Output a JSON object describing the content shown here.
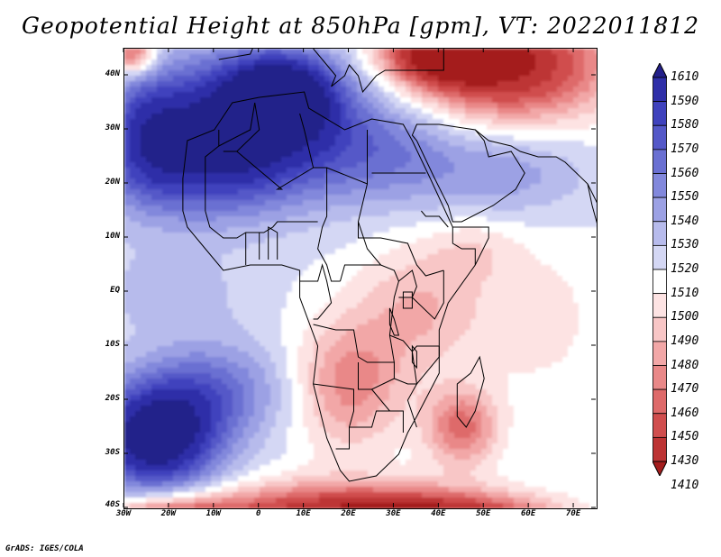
{
  "title": "Geopotential Height at 850hPa [gpm], VT: 2022011812",
  "credit": "GrADS: IGES/COLA",
  "map": {
    "extent": {
      "lon_min": -30,
      "lon_max": 75,
      "lat_min": -40,
      "lat_max": 45
    },
    "lat_ticks": [
      {
        "value": 40,
        "label": "40N"
      },
      {
        "value": 30,
        "label": "30N"
      },
      {
        "value": 20,
        "label": "20N"
      },
      {
        "value": 10,
        "label": "10N"
      },
      {
        "value": 0,
        "label": "EQ"
      },
      {
        "value": -10,
        "label": "10S"
      },
      {
        "value": -20,
        "label": "20S"
      },
      {
        "value": -30,
        "label": "30S"
      },
      {
        "value": -40,
        "label": "40S"
      }
    ],
    "lon_ticks": [
      {
        "value": -30,
        "label": "30W"
      },
      {
        "value": -20,
        "label": "20W"
      },
      {
        "value": -10,
        "label": "10W"
      },
      {
        "value": 0,
        "label": "0"
      },
      {
        "value": 10,
        "label": "10E"
      },
      {
        "value": 20,
        "label": "20E"
      },
      {
        "value": 30,
        "label": "30E"
      },
      {
        "value": 40,
        "label": "40E"
      },
      {
        "value": 50,
        "label": "50E"
      },
      {
        "value": 60,
        "label": "60E"
      },
      {
        "value": 70,
        "label": "70E"
      }
    ]
  },
  "colorbar": {
    "labels": [
      "1610",
      "1590",
      "1580",
      "1570",
      "1560",
      "1550",
      "1540",
      "1530",
      "1520",
      "1510",
      "1500",
      "1490",
      "1480",
      "1470",
      "1460",
      "1450",
      "1430",
      "1410"
    ],
    "colors": [
      "#24208a",
      "#2f2fa8",
      "#3f42bd",
      "#5458c8",
      "#6a70d2",
      "#8288dc",
      "#9ca1e4",
      "#b7bbec",
      "#d4d7f4",
      "#ffffff",
      "#fde3e3",
      "#f8c6c6",
      "#f2a7a7",
      "#e98888",
      "#de6a6a",
      "#d04e4e",
      "#bd3434",
      "#a41d1d"
    ]
  },
  "field": {
    "background_value": 1515,
    "features": [
      {
        "name": "atlantic-high-south",
        "lon": -23,
        "lat": -27,
        "rx": 14,
        "ry": 10,
        "value": 1620
      },
      {
        "name": "atlantic-high-south-ext",
        "lon": -10,
        "lat": -18,
        "rx": 16,
        "ry": 9,
        "value": 1555
      },
      {
        "name": "sahara-high",
        "lon": -2,
        "lat": 32,
        "rx": 22,
        "ry": 12,
        "value": 1600
      },
      {
        "name": "sahara-high-core",
        "lon": 5,
        "lat": 37,
        "rx": 12,
        "ry": 7,
        "value": 1590
      },
      {
        "name": "west-africa-high",
        "lon": -12,
        "lat": 22,
        "rx": 22,
        "ry": 10,
        "value": 1560
      },
      {
        "name": "arabia-high",
        "lon": 28,
        "lat": 26,
        "rx": 18,
        "ry": 10,
        "value": 1550
      },
      {
        "name": "arabia-east",
        "lon": 55,
        "lat": 22,
        "rx": 18,
        "ry": 8,
        "value": 1540
      },
      {
        "name": "north-atlantic-blue",
        "lon": -25,
        "lat": 30,
        "rx": 10,
        "ry": 12,
        "value": 1560
      },
      {
        "name": "tropical-atlantic",
        "lon": -20,
        "lat": 0,
        "rx": 18,
        "ry": 8,
        "value": 1530
      },
      {
        "name": "southern-ocean-low",
        "lon": 20,
        "lat": -42,
        "rx": 32,
        "ry": 6,
        "value": 1410
      },
      {
        "name": "southern-ocean-low-east",
        "lon": 45,
        "lat": -42,
        "rx": 20,
        "ry": 4,
        "value": 1460
      },
      {
        "name": "east-med-low",
        "lon": 55,
        "lat": 42,
        "rx": 22,
        "ry": 10,
        "value": 1420
      },
      {
        "name": "east-med-low-core",
        "lon": 42,
        "lat": 44,
        "rx": 12,
        "ry": 5,
        "value": 1410
      },
      {
        "name": "southern-africa-low",
        "lon": 20,
        "lat": -17,
        "rx": 12,
        "ry": 12,
        "value": 1470
      },
      {
        "name": "mozambique-low",
        "lon": 45,
        "lat": -25,
        "rx": 8,
        "ry": 7,
        "value": 1460
      },
      {
        "name": "east-africa-low",
        "lon": 36,
        "lat": -3,
        "rx": 14,
        "ry": 12,
        "value": 1485
      },
      {
        "name": "horn-low",
        "lon": 48,
        "lat": 8,
        "rx": 10,
        "ry": 6,
        "value": 1500
      },
      {
        "name": "indian-ocean-mild",
        "lon": 62,
        "lat": -5,
        "rx": 14,
        "ry": 14,
        "value": 1500
      },
      {
        "name": "iberia-low",
        "lon": -28,
        "lat": 44,
        "rx": 5,
        "ry": 4,
        "value": 1450
      },
      {
        "name": "south-atlantic-low",
        "lon": -20,
        "lat": -42,
        "rx": 14,
        "ry": 4,
        "value": 1450
      }
    ]
  },
  "geography": {
    "africa_outline": [
      [
        -17,
        21
      ],
      [
        -16,
        28
      ],
      [
        -10,
        30
      ],
      [
        -6,
        35
      ],
      [
        0,
        36
      ],
      [
        10,
        37
      ],
      [
        11,
        34
      ],
      [
        19,
        30
      ],
      [
        25,
        32
      ],
      [
        32,
        31
      ],
      [
        34,
        28
      ],
      [
        38,
        21
      ],
      [
        43,
        12
      ],
      [
        51,
        12
      ],
      [
        51,
        10
      ],
      [
        48,
        5
      ],
      [
        42,
        -2
      ],
      [
        40,
        -7
      ],
      [
        40,
        -15
      ],
      [
        35,
        -23
      ],
      [
        33,
        -26
      ],
      [
        31,
        -30
      ],
      [
        26,
        -34
      ],
      [
        20,
        -35
      ],
      [
        18,
        -33
      ],
      [
        15,
        -27
      ],
      [
        12,
        -17
      ],
      [
        13,
        -10
      ],
      [
        9,
        -1
      ],
      [
        9,
        4
      ],
      [
        5,
        5
      ],
      [
        -2,
        5
      ],
      [
        -8,
        4
      ],
      [
        -12,
        8
      ],
      [
        -16,
        12
      ],
      [
        -17,
        15
      ],
      [
        -17,
        21
      ]
    ],
    "madagascar": [
      [
        49,
        -12
      ],
      [
        50,
        -16
      ],
      [
        48,
        -22
      ],
      [
        46,
        -25
      ],
      [
        44,
        -23
      ],
      [
        44,
        -17
      ],
      [
        47,
        -15
      ],
      [
        49,
        -12
      ]
    ],
    "arabia": [
      [
        34,
        29
      ],
      [
        35,
        28
      ],
      [
        39,
        21
      ],
      [
        42,
        16
      ],
      [
        43,
        13
      ],
      [
        45,
        13
      ],
      [
        52,
        16
      ],
      [
        57,
        19
      ],
      [
        59,
        22
      ],
      [
        56,
        26
      ],
      [
        51,
        25
      ],
      [
        50,
        28
      ],
      [
        48,
        30
      ],
      [
        40,
        31
      ],
      [
        35,
        31
      ],
      [
        34,
        29
      ]
    ],
    "europe": [
      [
        -9,
        43
      ],
      [
        -2,
        44
      ],
      [
        -1,
        46
      ],
      [
        -20,
        46
      ]
    ],
    "italy_greece": [
      [
        12,
        45
      ],
      [
        15,
        42
      ],
      [
        17,
        40
      ],
      [
        16,
        38
      ],
      [
        19,
        40
      ],
      [
        20,
        42
      ],
      [
        22,
        40
      ],
      [
        23,
        37
      ],
      [
        26,
        40
      ],
      [
        28,
        41
      ],
      [
        30,
        41
      ],
      [
        36,
        41
      ],
      [
        41,
        41
      ],
      [
        41,
        46
      ]
    ],
    "iran_coast": [
      [
        48,
        30
      ],
      [
        51,
        28
      ],
      [
        56,
        27
      ],
      [
        58,
        26
      ],
      [
        62,
        25
      ],
      [
        66,
        25
      ],
      [
        68,
        24
      ],
      [
        73,
        20
      ],
      [
        76,
        15
      ]
    ],
    "india_west": [
      [
        73,
        20
      ],
      [
        74,
        16
      ],
      [
        76,
        10
      ]
    ],
    "borders": [
      [
        [
          -9,
          30
        ],
        [
          -9,
          27
        ],
        [
          -2,
          30
        ],
        [
          -1,
          35
        ]
      ],
      [
        [
          -1,
          35
        ],
        [
          0,
          30
        ],
        [
          -5,
          26
        ],
        [
          -8,
          26
        ]
      ],
      [
        [
          -5,
          26
        ],
        [
          5,
          19
        ],
        [
          4,
          19
        ],
        [
          12,
          23
        ],
        [
          10,
          30
        ],
        [
          9,
          33
        ]
      ],
      [
        [
          12,
          23
        ],
        [
          15,
          23
        ],
        [
          24,
          20
        ],
        [
          24,
          30
        ]
      ],
      [
        [
          25,
          22
        ],
        [
          37,
          22
        ]
      ],
      [
        [
          24,
          20
        ],
        [
          22,
          13
        ],
        [
          22,
          10
        ],
        [
          27,
          10
        ],
        [
          33,
          9
        ],
        [
          35,
          5
        ],
        [
          37,
          3
        ],
        [
          41,
          4
        ]
      ],
      [
        [
          15,
          23
        ],
        [
          15,
          14
        ],
        [
          14,
          12
        ],
        [
          13,
          8
        ],
        [
          15,
          5
        ],
        [
          16,
          2
        ],
        [
          18,
          2
        ]
      ],
      [
        [
          -12,
          15
        ],
        [
          -11,
          12
        ],
        [
          -8,
          10
        ],
        [
          -5,
          10
        ],
        [
          -3,
          11
        ],
        [
          1,
          11
        ],
        [
          3,
          12
        ],
        [
          4,
          13
        ],
        [
          13,
          13
        ]
      ],
      [
        [
          -12,
          15
        ],
        [
          -12,
          25
        ],
        [
          -9,
          27
        ]
      ],
      [
        [
          2,
          6
        ],
        [
          2,
          12
        ],
        [
          4,
          11
        ],
        [
          4,
          6
        ]
      ],
      [
        [
          -3,
          5
        ],
        [
          -3,
          11
        ]
      ],
      [
        [
          0,
          11
        ],
        [
          0,
          6
        ]
      ],
      [
        [
          9,
          2
        ],
        [
          13,
          2
        ],
        [
          14,
          5
        ],
        [
          15,
          2
        ],
        [
          16,
          -2
        ],
        [
          13,
          -5
        ],
        [
          12,
          -5
        ]
      ],
      [
        [
          18,
          2
        ],
        [
          19,
          5
        ],
        [
          23,
          5
        ],
        [
          27,
          5
        ],
        [
          30,
          4
        ],
        [
          31,
          2
        ],
        [
          30,
          -1
        ],
        [
          29,
          -8
        ],
        [
          30,
          -13
        ],
        [
          24,
          -13
        ],
        [
          22,
          -12
        ],
        [
          21,
          -7
        ],
        [
          17,
          -7
        ],
        [
          12,
          -6
        ]
      ],
      [
        [
          31,
          2
        ],
        [
          34,
          4
        ],
        [
          35,
          1
        ],
        [
          34,
          -1
        ],
        [
          31,
          -1
        ]
      ],
      [
        [
          34,
          -1
        ],
        [
          39,
          -5
        ],
        [
          41,
          -2
        ],
        [
          41,
          4
        ]
      ],
      [
        [
          29,
          -8
        ],
        [
          32,
          -9
        ],
        [
          34,
          -11
        ],
        [
          35,
          -10
        ],
        [
          40,
          -10
        ]
      ],
      [
        [
          34,
          -11
        ],
        [
          35,
          -17
        ],
        [
          33,
          -17
        ],
        [
          30,
          -16
        ],
        [
          30,
          -13
        ]
      ],
      [
        [
          22,
          -13
        ],
        [
          22,
          -18
        ],
        [
          25,
          -18
        ],
        [
          30,
          -16
        ]
      ],
      [
        [
          12,
          -17
        ],
        [
          21,
          -18
        ],
        [
          21,
          -22
        ],
        [
          20,
          -25
        ],
        [
          20,
          -29
        ],
        [
          17,
          -29
        ]
      ],
      [
        [
          25,
          -18
        ],
        [
          29,
          -22
        ],
        [
          32,
          -22
        ],
        [
          32,
          -26
        ]
      ],
      [
        [
          20,
          -25
        ],
        [
          23,
          -25
        ],
        [
          25,
          -25
        ],
        [
          26,
          -22
        ],
        [
          29,
          -22
        ]
      ],
      [
        [
          40,
          -10
        ],
        [
          40,
          -12
        ],
        [
          35,
          -17
        ],
        [
          33,
          -20
        ],
        [
          35,
          -25
        ]
      ],
      [
        [
          43,
          12
        ],
        [
          43,
          9
        ],
        [
          45,
          8
        ],
        [
          48,
          8
        ],
        [
          48,
          5
        ]
      ],
      [
        [
          36,
          15
        ],
        [
          37,
          14
        ],
        [
          40,
          14
        ],
        [
          42,
          12
        ]
      ],
      [
        [
          22,
          13
        ],
        [
          24,
          8
        ],
        [
          27,
          5
        ]
      ]
    ],
    "lakes": [
      [
        [
          32,
          0
        ],
        [
          34,
          0
        ],
        [
          34,
          -3
        ],
        [
          32,
          -3
        ],
        [
          32,
          0
        ]
      ],
      [
        [
          29,
          -3
        ],
        [
          30,
          -5
        ],
        [
          31,
          -8
        ],
        [
          30,
          -8
        ],
        [
          29,
          -6
        ],
        [
          29,
          -3
        ]
      ],
      [
        [
          34,
          -10
        ],
        [
          35,
          -11
        ],
        [
          35,
          -14
        ],
        [
          34,
          -13
        ],
        [
          34,
          -10
        ]
      ]
    ]
  }
}
